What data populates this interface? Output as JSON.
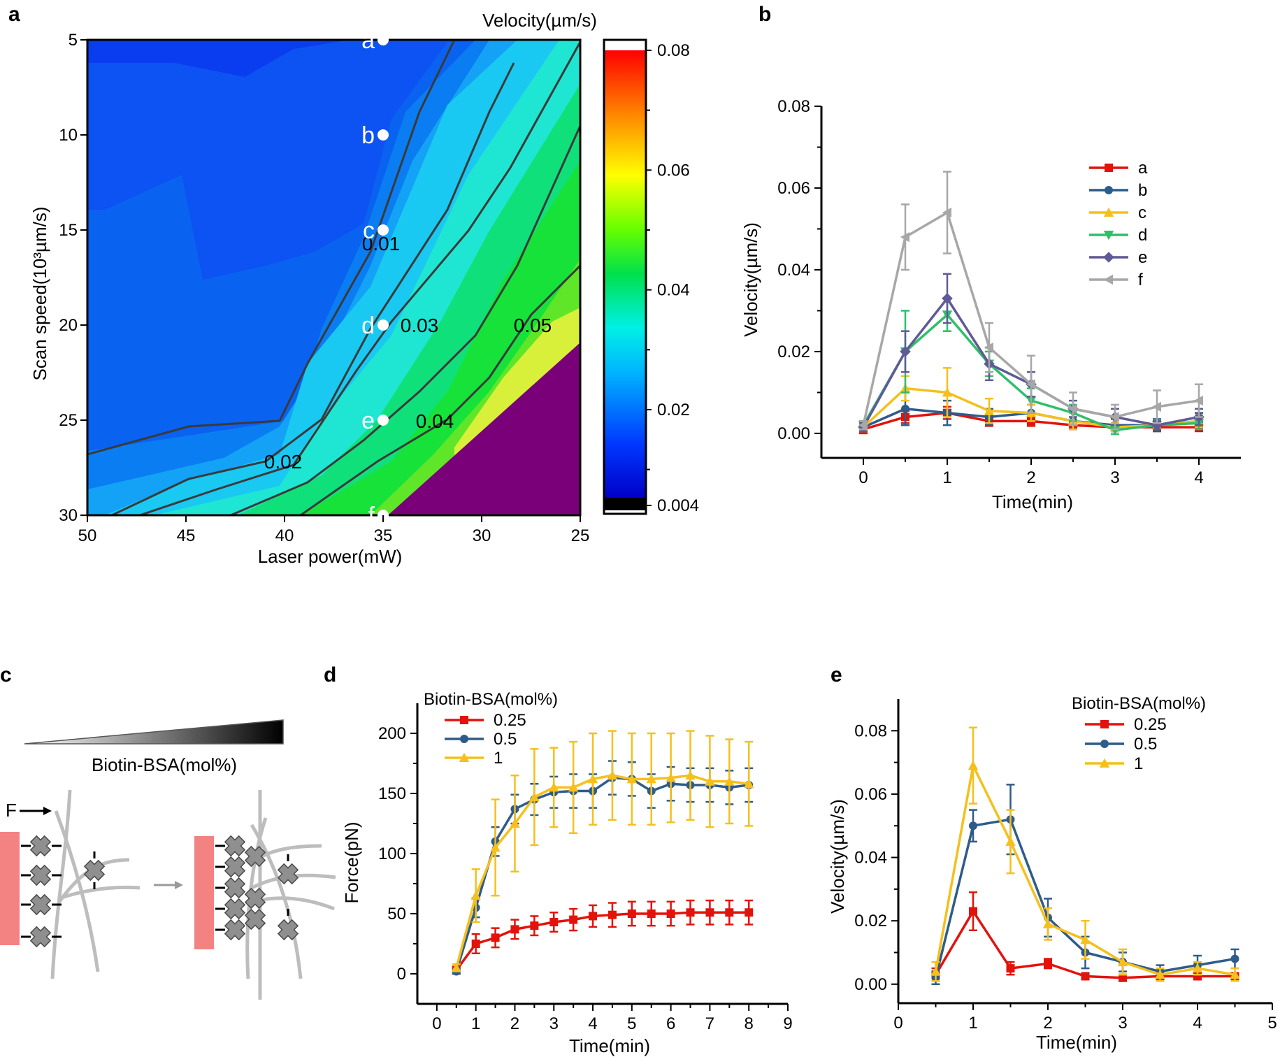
{
  "panels": {
    "a": {
      "label": "a",
      "chart_data": {
        "type": "heatmap",
        "title": "",
        "xlabel": "Laser power(mW)",
        "ylabel": "Scan speed(10³µm/s)",
        "x_ticks": [
          "50",
          "45",
          "40",
          "35",
          "30",
          "25"
        ],
        "y_ticks": [
          "5",
          "10",
          "15",
          "20",
          "25",
          "30"
        ],
        "xlim": [
          50,
          25
        ],
        "ylim": [
          5,
          30
        ],
        "colorbar": {
          "title": "Velocity(µm/s)",
          "min_label": "0.004",
          "max_label": "0.08",
          "tick_labels": [
            "0.08",
            "0.06",
            "0.04",
            "0.02",
            "0.004"
          ],
          "tick_values": [
            0.08,
            0.06,
            0.04,
            0.02,
            0.004
          ]
        },
        "contour_labels": [
          "0.01",
          "0.02",
          "0.03",
          "0.04",
          "0.05"
        ],
        "points": [
          {
            "name": "a",
            "power": 35,
            "speed": 5
          },
          {
            "name": "b",
            "power": 35,
            "speed": 10
          },
          {
            "name": "c",
            "power": 35,
            "speed": 15
          },
          {
            "name": "d",
            "power": 35,
            "speed": 20
          },
          {
            "name": "e",
            "power": 35,
            "speed": 25
          },
          {
            "name": "f",
            "power": 35,
            "speed": 30
          }
        ]
      }
    },
    "b": {
      "label": "b",
      "chart_data": {
        "type": "line",
        "xlabel": "Time(min)",
        "ylabel": "Velocity(µm/s)",
        "xlim": [
          -0.5,
          4.5
        ],
        "ylim": [
          -0.006,
          0.08
        ],
        "x_ticks": [
          0,
          1,
          2,
          3,
          4
        ],
        "y_ticks": [
          0.0,
          0.02,
          0.04,
          0.06,
          0.08
        ],
        "y_tick_labels": [
          "0.00",
          "0.02",
          "0.04",
          "0.06",
          "0.08"
        ],
        "x": [
          0,
          0.5,
          1,
          1.5,
          2,
          2.5,
          3,
          3.5,
          4
        ],
        "series": [
          {
            "name": "a",
            "color": "#e3120b",
            "marker": "square",
            "values": [
              0.001,
              0.004,
              0.005,
              0.003,
              0.003,
              0.002,
              0.0015,
              0.0015,
              0.0015
            ],
            "errors": [
              0.001,
              0.0015,
              0.0015,
              0.0012,
              0.0012,
              0.001,
              0.001,
              0.001,
              0.001
            ]
          },
          {
            "name": "b",
            "color": "#2e5c8a",
            "marker": "circle",
            "values": [
              0.0015,
              0.006,
              0.005,
              0.004,
              0.005,
              0.003,
              0.002,
              0.002,
              0.003
            ],
            "errors": [
              0.001,
              0.004,
              0.003,
              0.002,
              0.002,
              0.002,
              0.0015,
              0.0015,
              0.002
            ]
          },
          {
            "name": "c",
            "color": "#f5c01c",
            "marker": "triangle-up",
            "values": [
              0.0015,
              0.011,
              0.01,
              0.0055,
              0.005,
              0.003,
              0.0015,
              0.002,
              0.003
            ],
            "errors": [
              0.001,
              0.003,
              0.006,
              0.003,
              0.002,
              0.002,
              0.001,
              0.001,
              0.0015
            ]
          },
          {
            "name": "d",
            "color": "#2fbf6b",
            "marker": "triangle-down",
            "values": [
              0.002,
              0.02,
              0.029,
              0.017,
              0.008,
              0.005,
              0.0008,
              0.002,
              0.0025
            ],
            "errors": [
              0.001,
              0.01,
              0.004,
              0.003,
              0.003,
              0.002,
              0.001,
              0.001,
              0.0015
            ]
          },
          {
            "name": "e",
            "color": "#5f5a96",
            "marker": "diamond",
            "values": [
              0.0015,
              0.02,
              0.033,
              0.017,
              0.012,
              0.006,
              0.004,
              0.002,
              0.004
            ],
            "errors": [
              0.001,
              0.005,
              0.006,
              0.004,
              0.003,
              0.002,
              0.002,
              0.001,
              0.002
            ]
          },
          {
            "name": "f",
            "color": "#a7a7a7",
            "marker": "triangle-left",
            "values": [
              0.002,
              0.048,
              0.054,
              0.021,
              0.012,
              0.006,
              0.004,
              0.0065,
              0.008
            ],
            "errors": [
              0.001,
              0.008,
              0.01,
              0.006,
              0.007,
              0.004,
              0.003,
              0.004,
              0.004
            ]
          }
        ]
      }
    },
    "c": {
      "label": "c",
      "gradient_label": "Biotin-BSA(mol%)",
      "force_label": "F"
    },
    "d": {
      "label": "d",
      "chart_data": {
        "type": "line",
        "xlabel": "Time(min)",
        "ylabel": "Force(pN)",
        "xlim": [
          -0.5,
          9
        ],
        "ylim": [
          -25,
          225
        ],
        "x_ticks": [
          0,
          1,
          2,
          3,
          4,
          5,
          6,
          7,
          8,
          9
        ],
        "y_ticks": [
          0,
          50,
          100,
          150,
          200
        ],
        "legend_title": "Biotin-BSA(mol%)",
        "x": [
          0.5,
          1,
          1.5,
          2,
          2.5,
          3,
          3.5,
          4,
          4.5,
          5,
          5.5,
          6,
          6.5,
          7,
          7.5,
          8
        ],
        "series": [
          {
            "name": "0.25",
            "color": "#e3120b",
            "marker": "square",
            "values": [
              3,
              25,
              30,
              37,
              40,
              43,
              45,
              48,
              49,
              50,
              50,
              50,
              51,
              51,
              51,
              51
            ],
            "errors": [
              3,
              8,
              8,
              8,
              8,
              8,
              9,
              9,
              10,
              10,
              10,
              10,
              10,
              10,
              10,
              10
            ]
          },
          {
            "name": "0.5",
            "color": "#2e5c8a",
            "marker": "circle",
            "values": [
              2,
              55,
              110,
              137,
              145,
              151,
              152,
              152,
              163,
              162,
              152,
              158,
              157,
              157,
              155,
              157
            ],
            "errors": [
              2,
              8,
              12,
              12,
              13,
              13,
              14,
              14,
              14,
              14,
              14,
              14,
              14,
              14,
              14,
              14
            ]
          },
          {
            "name": "1",
            "color": "#f5c01c",
            "marker": "triangle-up",
            "values": [
              5,
              65,
              105,
              125,
              147,
              155,
              155,
              162,
              165,
              162,
              162,
              163,
              165,
              160,
              160,
              158
            ],
            "errors": [
              3,
              22,
              40,
              40,
              40,
              33,
              38,
              38,
              37,
              38,
              38,
              37,
              37,
              38,
              35,
              35
            ]
          }
        ]
      }
    },
    "e": {
      "label": "e",
      "chart_data": {
        "type": "line",
        "xlabel": "Time(min)",
        "ylabel": "Velocity(µm/s)",
        "xlim": [
          0,
          5
        ],
        "ylim": [
          -0.006,
          0.09
        ],
        "x_ticks": [
          0,
          1,
          2,
          3,
          4,
          5
        ],
        "y_ticks": [
          0.0,
          0.02,
          0.04,
          0.06,
          0.08
        ],
        "y_tick_labels": [
          "0.00",
          "0.02",
          "0.04",
          "0.06",
          "0.08"
        ],
        "legend_title": "Biotin-BSA(mol%)",
        "x": [
          0.5,
          1,
          1.5,
          2,
          2.5,
          3,
          3.5,
          4,
          4.5
        ],
        "series": [
          {
            "name": "0.25",
            "color": "#e3120b",
            "marker": "square",
            "values": [
              0.003,
              0.023,
              0.005,
              0.0065,
              0.0025,
              0.002,
              0.0025,
              0.0025,
              0.0025
            ],
            "errors": [
              0.002,
              0.006,
              0.002,
              0.0015,
              0.001,
              0.001,
              0.001,
              0.001,
              0.001
            ]
          },
          {
            "name": "0.5",
            "color": "#2e5c8a",
            "marker": "circle",
            "values": [
              0.002,
              0.05,
              0.052,
              0.021,
              0.01,
              0.007,
              0.004,
              0.006,
              0.008
            ],
            "errors": [
              0.002,
              0.005,
              0.011,
              0.006,
              0.005,
              0.003,
              0.002,
              0.003,
              0.003
            ]
          },
          {
            "name": "1",
            "color": "#f5c01c",
            "marker": "triangle-up",
            "values": [
              0.004,
              0.069,
              0.045,
              0.019,
              0.014,
              0.007,
              0.003,
              0.005,
              0.003
            ],
            "errors": [
              0.003,
              0.012,
              0.01,
              0.005,
              0.006,
              0.004,
              0.002,
              0.002,
              0.002
            ]
          }
        ]
      }
    }
  }
}
